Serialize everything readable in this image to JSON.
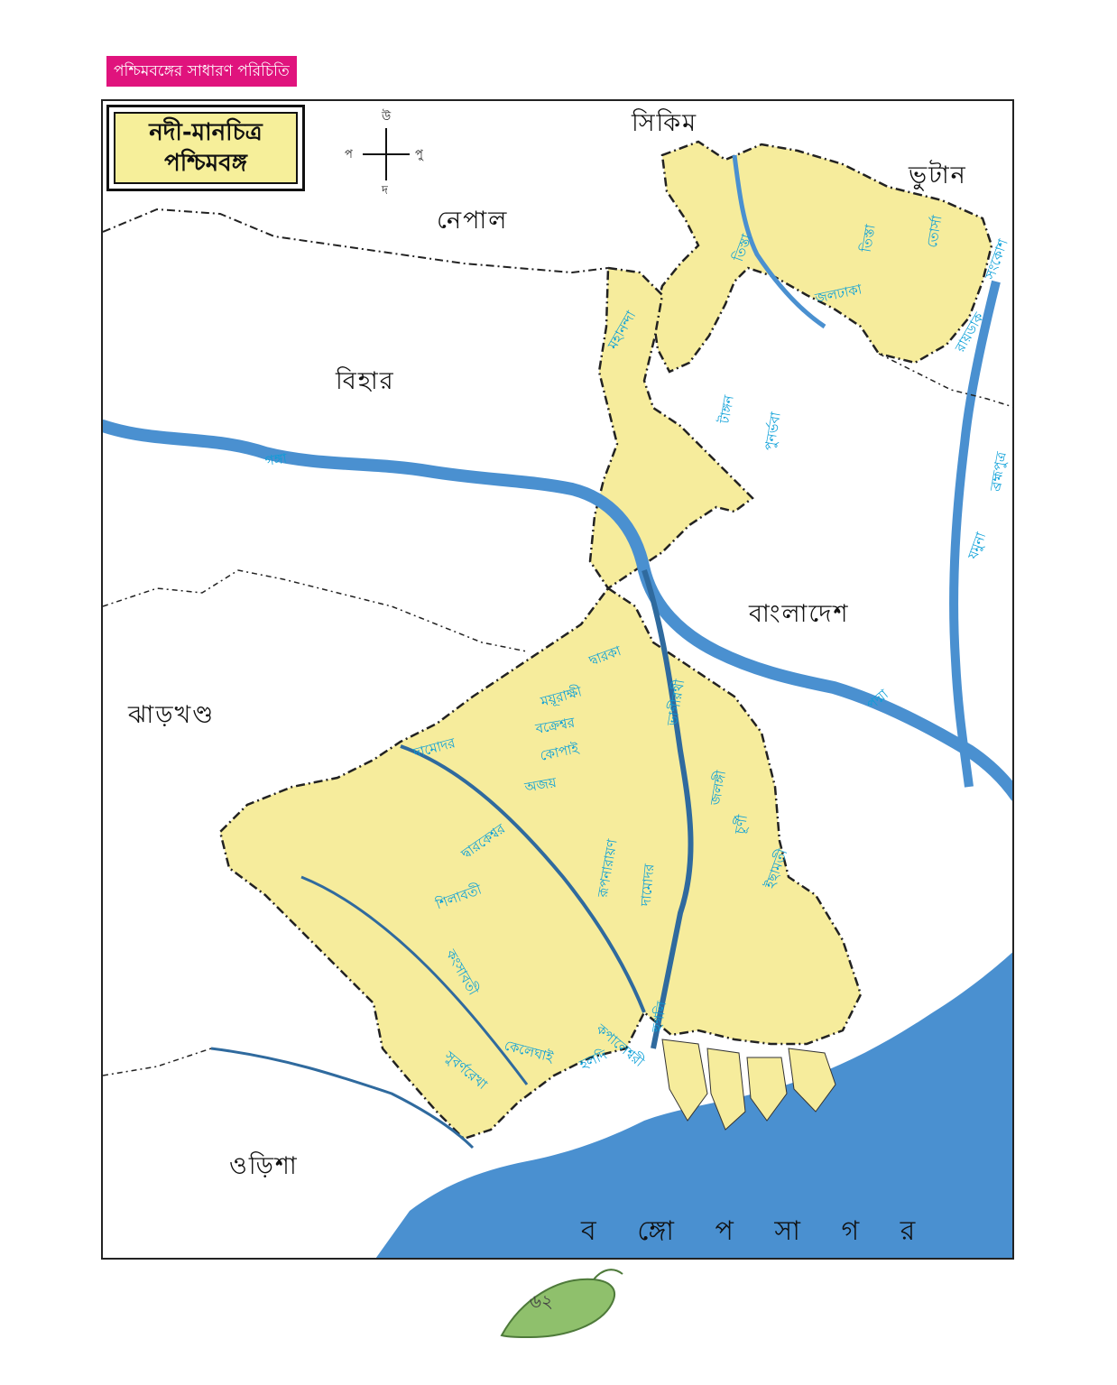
{
  "header": {
    "label": "পশ্চিমবঙ্গের সাধারণ পরিচিতি"
  },
  "map": {
    "title_line1": "নদী-মানচিত্র",
    "title_line2": "পশ্চিমবঙ্গ",
    "compass": {
      "north": "উ",
      "south": "দ",
      "east": "পু",
      "west": "প"
    },
    "regions": {
      "sikkim": "সিকিম",
      "bhutan": "ভুটান",
      "nepal": "নেপাল",
      "bihar": "বিহার",
      "bangladesh": "বাংলাদেশ",
      "jharkhand": "ঝাড়খণ্ড",
      "odisha": "ওড়িশা",
      "bay_of_bengal": "ব ঙ্গো প সা গ র"
    },
    "rivers": {
      "ganga": "গঙ্গা",
      "teesta_1": "তিস্তা",
      "teesta_2": "তিস্তা",
      "torsa": "তোর্সা",
      "jaldhaka": "জলঢাকা",
      "mahananda": "মহানন্দা",
      "tangon": "টাঙ্গন",
      "punarbhaba": "পুনর্ভবা",
      "sankosh": "সংকোশ",
      "raidak": "রায়ডাক",
      "brahmaputra": "ব্রহ্মপুত্র",
      "jamuna": "যমুনা",
      "padma": "পদ্মা",
      "dwarka": "দ্বারকা",
      "bhagirathi": "ভাগীরথী",
      "mayurakshi": "ময়ূরাক্ষী",
      "bakreshwar": "বক্রেশ্বর",
      "kopai": "কোপাই",
      "damodar_1": "দামোদর",
      "ajay": "অজয়",
      "jalangi": "জলঙ্গী",
      "churni": "চূর্ণী",
      "ichamati": "ইছামতী",
      "dwarakeswar": "দ্বারকেশ্বর",
      "shilabati": "শিলাবতী",
      "rupnarayan": "রূপনারায়ণ",
      "damodar_2": "দামোদর",
      "kangsabati": "কংসাবতী",
      "kaleghai": "কেলেঘাই",
      "subarnarekha": "সুবর্ণরেখা",
      "haldi": "হলদি",
      "kapaleswari": "কপালেশ্বরী",
      "hooghly": "হুগলি"
    },
    "colors": {
      "land": "#f6ec9c",
      "water": "#4a90d0",
      "river_text": "#0a9fd8",
      "header": "#e0137d"
    }
  },
  "page": {
    "number": "৬২"
  }
}
